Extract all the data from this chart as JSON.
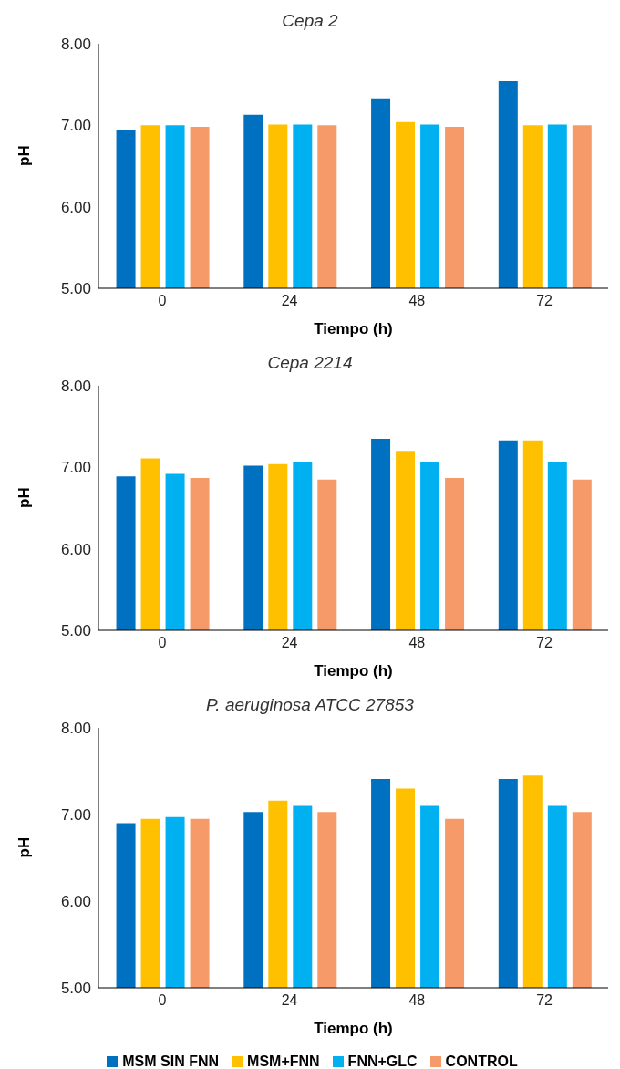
{
  "chart_data": [
    {
      "type": "bar",
      "title": "Cepa 2",
      "xlabel": "Tiempo (h)",
      "ylabel": "pH",
      "categories": [
        "0",
        "24",
        "48",
        "72"
      ],
      "series": [
        {
          "color": "#0070c0",
          "values": [
            6.94,
            7.13,
            7.33,
            7.54
          ]
        },
        {
          "color": "#ffc000",
          "values": [
            7.0,
            7.01,
            7.04,
            7.0
          ]
        },
        {
          "color": "#00b0f0",
          "values": [
            7.0,
            7.01,
            7.01,
            7.01
          ]
        },
        {
          "color": "#f79a6a",
          "values": [
            6.98,
            7.0,
            6.98,
            7.0
          ]
        }
      ],
      "ylim": [
        5,
        8
      ],
      "yticks": [
        {
          "value": 5,
          "label": "5.00"
        },
        {
          "value": 6,
          "label": "6.00"
        },
        {
          "value": 7,
          "label": "7.00"
        },
        {
          "value": 8,
          "label": "8.00"
        }
      ],
      "grid": false,
      "legend": false
    },
    {
      "type": "bar",
      "title": "Cepa 2214",
      "xlabel": "Tiempo (h)",
      "ylabel": "pH",
      "categories": [
        "0",
        "24",
        "48",
        "72"
      ],
      "series": [
        {
          "color": "#0070c0",
          "values": [
            6.89,
            7.02,
            7.35,
            7.33
          ]
        },
        {
          "color": "#ffc000",
          "values": [
            7.11,
            7.04,
            7.19,
            7.33
          ]
        },
        {
          "color": "#00b0f0",
          "values": [
            6.92,
            7.06,
            7.06,
            7.06
          ]
        },
        {
          "color": "#f79a6a",
          "values": [
            6.87,
            6.85,
            6.87,
            6.85
          ]
        }
      ],
      "ylim": [
        5,
        8
      ],
      "yticks": [
        {
          "value": 5,
          "label": "5.00"
        },
        {
          "value": 6,
          "label": "6.00"
        },
        {
          "value": 7,
          "label": "7.00"
        },
        {
          "value": 8,
          "label": "8.00"
        }
      ],
      "grid": false,
      "legend": false
    },
    {
      "type": "bar",
      "title": "P. aeruginosa ATCC 27853",
      "xlabel": "Tiempo (h)",
      "ylabel": "pH",
      "categories": [
        "0",
        "24",
        "48",
        "72"
      ],
      "series": [
        {
          "name": "MSM SIN FNN",
          "color": "#0070c0",
          "values": [
            6.9,
            7.03,
            7.41,
            7.41
          ]
        },
        {
          "name": "MSM+FNN",
          "color": "#ffc000",
          "values": [
            6.95,
            7.16,
            7.3,
            7.45
          ]
        },
        {
          "name": "FNN+GLC",
          "color": "#00b0f0",
          "values": [
            6.97,
            7.1,
            7.1,
            7.1
          ]
        },
        {
          "name": "CONTROL",
          "color": "#f79a6a",
          "values": [
            6.95,
            7.03,
            6.95,
            7.03
          ]
        }
      ],
      "ylim": [
        5,
        8
      ],
      "yticks": [
        {
          "value": 5,
          "label": "5.00"
        },
        {
          "value": 6,
          "label": "6.00"
        },
        {
          "value": 7,
          "label": "7.00"
        },
        {
          "value": 8,
          "label": "8.00"
        }
      ],
      "grid": false,
      "legend": "bottom"
    }
  ]
}
